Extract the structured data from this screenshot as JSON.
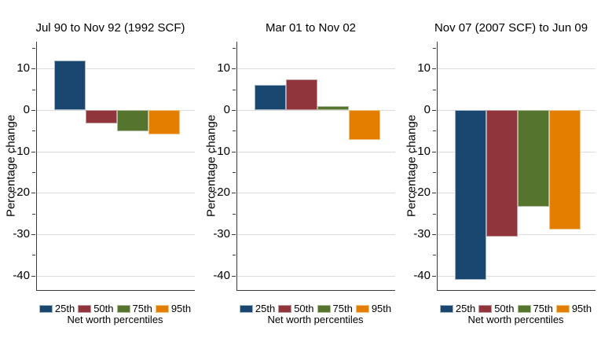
{
  "figure": {
    "ylabel": "Percentage change",
    "legend_title": "Net worth percentiles"
  },
  "palette": [
    {
      "label": "25th",
      "fill": "#1a476f",
      "edge": "#a3b4c2"
    },
    {
      "label": "50th",
      "fill": "#90353b",
      "edge": "#c29a9d"
    },
    {
      "label": "75th",
      "fill": "#55752f",
      "edge": "#aebd9b"
    },
    {
      "label": "95th",
      "fill": "#e37e00",
      "edge": "#f1c382"
    }
  ],
  "chart_data": [
    {
      "type": "bar",
      "title": "Jul 90 to Nov 92 (1992 SCF)",
      "categories": [
        "25th",
        "50th",
        "75th",
        "95th"
      ],
      "values": [
        12,
        -3.3,
        -5.1,
        -6
      ],
      "xlabel": "",
      "ylabel": "Percentage change",
      "legend_title": "Net worth percentiles",
      "legend_position": "bottom",
      "grid": true,
      "ylim": [
        -43.5,
        16.5
      ],
      "yticks": [
        10,
        0,
        -10,
        -20,
        -30,
        -40
      ],
      "ytick_labels": [
        "10",
        "0",
        "-10",
        "-20",
        "-30",
        "-40"
      ],
      "yticks_minor": [
        15,
        5,
        -5,
        -15,
        -25,
        -35
      ]
    },
    {
      "type": "bar",
      "title": "Mar 01 to Nov 02",
      "categories": [
        "25th",
        "50th",
        "75th",
        "95th"
      ],
      "values": [
        6,
        7.4,
        1,
        -7.2
      ],
      "xlabel": "",
      "ylabel": "Percentage change",
      "legend_title": "Net worth percentiles",
      "legend_position": "bottom",
      "grid": true,
      "ylim": [
        -43.5,
        16.5
      ],
      "yticks": [
        10,
        0,
        -10,
        -20,
        -30,
        -40
      ],
      "ytick_labels": [
        "10",
        "0",
        "-10",
        "-20",
        "-30",
        "-40"
      ],
      "yticks_minor": [
        15,
        5,
        -5,
        -15,
        -25,
        -35
      ]
    },
    {
      "type": "bar",
      "title": "Nov 07 (2007 SCF) to Jun 09",
      "categories": [
        "25th",
        "50th",
        "75th",
        "95th"
      ],
      "values": [
        -41,
        -30.5,
        -23.3,
        -28.8
      ],
      "xlabel": "",
      "ylabel": "Percentage change",
      "legend_title": "Net worth percentiles",
      "legend_position": "bottom",
      "grid": true,
      "ylim": [
        -43.5,
        16.5
      ],
      "yticks": [
        10,
        0,
        -10,
        -20,
        -30,
        -40
      ],
      "ytick_labels": [
        "10",
        "0",
        "-10",
        "-20",
        "-30",
        "-40"
      ],
      "yticks_minor": [
        15,
        5,
        -5,
        -15,
        -25,
        -35
      ]
    }
  ]
}
